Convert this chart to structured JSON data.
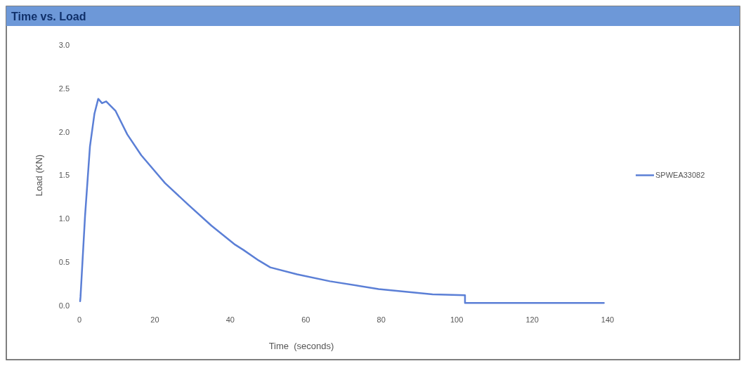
{
  "chart_data": {
    "type": "line",
    "title": "Time vs. Load",
    "xlabel": "Time  (seconds)",
    "ylabel": "Load (KN)",
    "xlim": [
      0,
      140
    ],
    "xticks": [
      0,
      20,
      40,
      60,
      80,
      100,
      120,
      140
    ],
    "ylim": [
      0,
      3
    ],
    "yticks": [
      {
        "value": 0,
        "label": "0.0"
      },
      {
        "value": 0.5,
        "label": "0.5"
      },
      {
        "value": 1,
        "label": "1.0"
      },
      {
        "value": 1.5,
        "label": "1.5"
      },
      {
        "value": 2,
        "label": "2.0"
      },
      {
        "value": 2.5,
        "label": "2.5"
      },
      {
        "value": 3,
        "label": "3.0"
      }
    ],
    "legend": "right",
    "grid": false,
    "series": [
      {
        "name": "SPWEA33082",
        "color": "#5b7fd6",
        "x": [
          0.2,
          0.3,
          1.5,
          2.8,
          4.0,
          5.0,
          6.0,
          7.1,
          9.6,
          12.7,
          16.4,
          22.7,
          28.9,
          35,
          41.3,
          43.5,
          47.5,
          50.6,
          57.7,
          66.4,
          79.3,
          93.6,
          102.2,
          102.2,
          110,
          120,
          130,
          139
        ],
        "values": [
          0.05,
          0.1,
          1.03,
          1.83,
          2.21,
          2.38,
          2.33,
          2.35,
          2.24,
          1.97,
          1.73,
          1.41,
          1.16,
          0.92,
          0.7,
          0.64,
          0.52,
          0.44,
          0.36,
          0.28,
          0.19,
          0.13,
          0.12,
          0.03,
          0.03,
          0.03,
          0.03,
          0.03
        ]
      }
    ]
  }
}
